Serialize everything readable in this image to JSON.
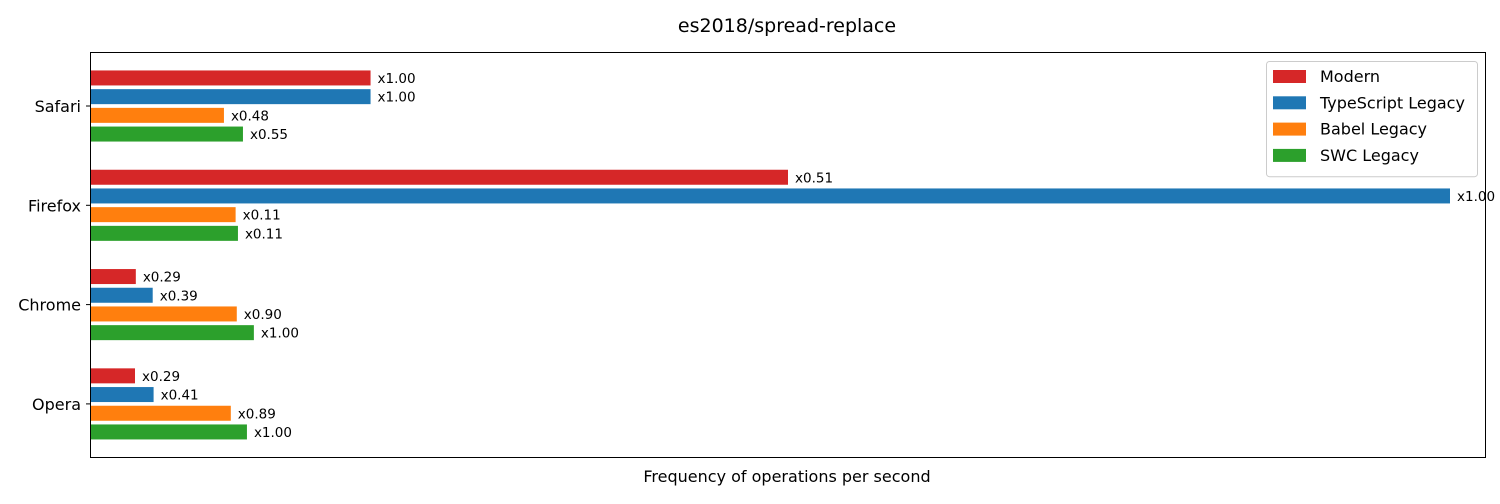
{
  "chart_data": {
    "type": "bar",
    "orientation": "horizontal",
    "title": "es2018/spread-replace",
    "xlabel": "Frequency of operations per second",
    "ylabel": "",
    "x_ticks_shown": false,
    "grid": false,
    "legend_position": "top-right",
    "xlim": [
      0,
      0.02031
    ],
    "categories": [
      "Safari",
      "Firefox",
      "Chrome",
      "Opera"
    ],
    "series": [
      {
        "name": "Modern",
        "color": "#d62728",
        "values": [
          0.004073,
          0.010155,
          0.000653,
          0.000641
        ],
        "labels": [
          "x1.00",
          "x0.51",
          "x0.29",
          "x0.29"
        ]
      },
      {
        "name": "TypeScript Legacy",
        "color": "#1f77b4",
        "values": [
          0.004073,
          0.0198,
          0.000899,
          0.000912
        ],
        "labels": [
          "x1.00",
          "x1.00",
          "x0.39",
          "x0.41"
        ]
      },
      {
        "name": "Babel Legacy",
        "color": "#ff7f0e",
        "values": [
          0.001937,
          0.002107,
          0.002124,
          0.002037
        ],
        "labels": [
          "x0.48",
          "x0.11",
          "x0.90",
          "x0.89"
        ]
      },
      {
        "name": "SWC Legacy",
        "color": "#2ca02c",
        "values": [
          0.002214,
          0.002141,
          0.002373,
          0.002272
        ],
        "labels": [
          "x0.55",
          "x0.11",
          "x1.00",
          "x1.00"
        ]
      }
    ]
  }
}
